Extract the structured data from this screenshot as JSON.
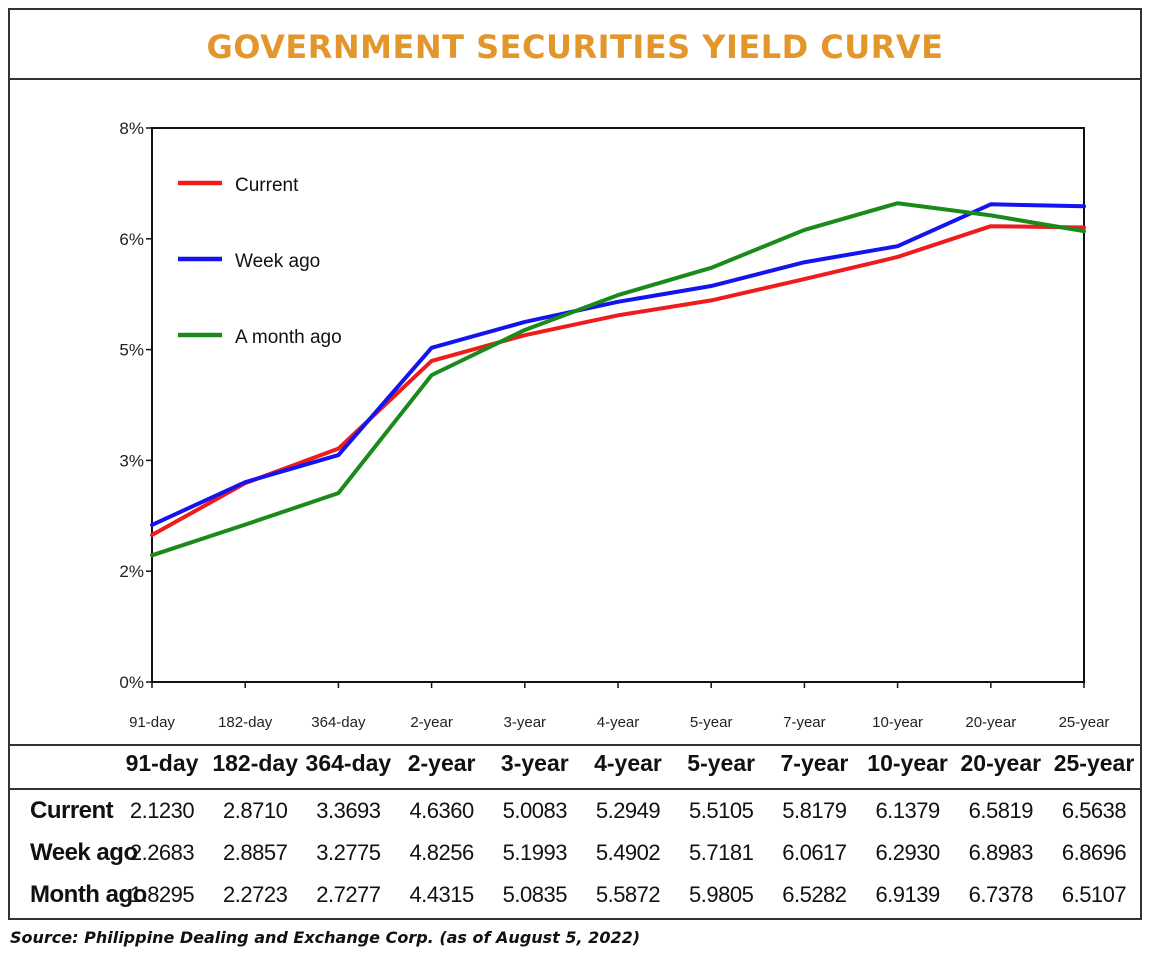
{
  "colors": {
    "title": "#e3962b",
    "current": "#ee1c1c",
    "week_ago": "#1414ee",
    "month_ago": "#1a8a1a",
    "border": "#333333"
  },
  "chart_data": {
    "type": "line",
    "title": "GOVERNMENT SECURITIES YIELD CURVE",
    "categories": [
      "91-day",
      "182-day",
      "364-day",
      "2-year",
      "3-year",
      "4-year",
      "5-year",
      "7-year",
      "10-year",
      "20-year",
      "25-year"
    ],
    "series": [
      {
        "name": "Current",
        "color": "#ee1c1c",
        "values": [
          2.123,
          2.871,
          3.3693,
          4.636,
          5.0083,
          5.2949,
          5.5105,
          5.8179,
          6.1379,
          6.5819,
          6.5638
        ]
      },
      {
        "name": "Week ago",
        "color": "#1414ee",
        "values": [
          2.2683,
          2.8857,
          3.2775,
          4.8256,
          5.1993,
          5.4902,
          5.7181,
          6.0617,
          6.293,
          6.8983,
          6.8696
        ]
      },
      {
        "name": "A month ago",
        "color": "#1a8a1a",
        "values": [
          1.8295,
          2.2723,
          2.7277,
          4.4315,
          5.0835,
          5.5872,
          5.9805,
          6.5282,
          6.9139,
          6.7378,
          6.5107
        ]
      }
    ],
    "yticks": [
      "0%",
      "2%",
      "3%",
      "5%",
      "6%",
      "8%"
    ],
    "ylim": [
      0,
      8
    ],
    "grid": false,
    "legend_position": "top-left"
  },
  "table": {
    "headers": [
      "91-day",
      "182-day",
      "364-day",
      "2-year",
      "3-year",
      "4-year",
      "5-year",
      "7-year",
      "10-year",
      "20-year",
      "25-year"
    ],
    "rows": [
      {
        "label": "Current",
        "values": [
          "2.1230",
          "2.8710",
          "3.3693",
          "4.6360",
          "5.0083",
          "5.2949",
          "5.5105",
          "5.8179",
          "6.1379",
          "6.5819",
          "6.5638"
        ]
      },
      {
        "label": "Week ago",
        "values": [
          "2.2683",
          "2.8857",
          "3.2775",
          "4.8256",
          "5.1993",
          "5.4902",
          "5.7181",
          "6.0617",
          "6.2930",
          "6.8983",
          "6.8696"
        ]
      },
      {
        "label": "Month ago",
        "values": [
          "1.8295",
          "2.2723",
          "2.7277",
          "4.4315",
          "5.0835",
          "5.5872",
          "5.9805",
          "6.5282",
          "6.9139",
          "6.7378",
          "6.5107"
        ]
      }
    ]
  },
  "source": "Source: Philippine Dealing and Exchange Corp. (as of August 5, 2022)"
}
